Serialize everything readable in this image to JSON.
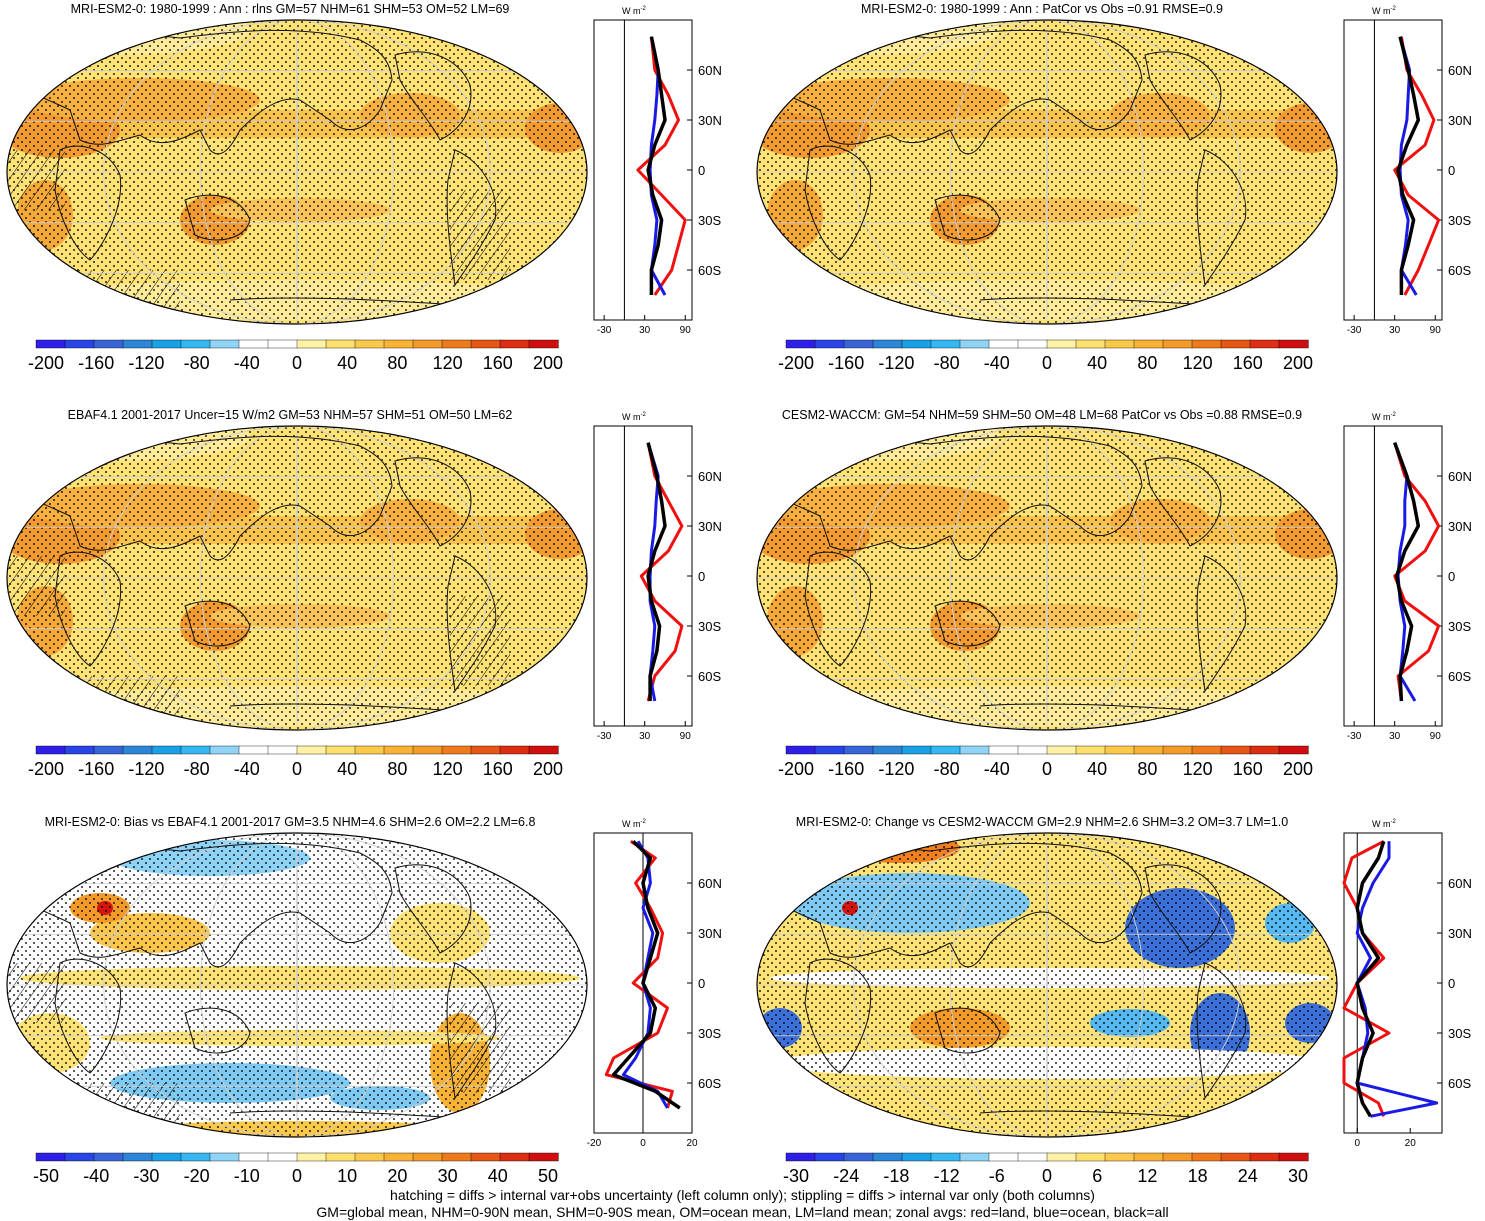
{
  "panels": [
    {
      "title": "MRI-ESM2-0: 1980-1999 : Ann : rlns GM=57 NHM=61 SHM=53 OM=52 LM=69",
      "kind": "climatology",
      "hatching": true,
      "colorbar": [
        "-200",
        "-160",
        "-120",
        "-80",
        "-40",
        "0",
        "40",
        "80",
        "120",
        "160",
        "200"
      ],
      "zonal": {
        "unit": "W m",
        "unit_sup": "-2",
        "xticks": [
          "-30",
          "30",
          "90"
        ],
        "xmin": -45,
        "xmax": 100,
        "zero_line": 0,
        "lat_labels": [
          "60N",
          "30N",
          "0",
          "30S",
          "60S"
        ]
      }
    },
    {
      "title": "MRI-ESM2-0: 1980-1999 : Ann : PatCor vs Obs =0.91 RMSE=0.9",
      "kind": "climatology",
      "hatching": false,
      "colorbar": [
        "-200",
        "-160",
        "-120",
        "-80",
        "-40",
        "0",
        "40",
        "80",
        "120",
        "160",
        "200"
      ],
      "zonal": {
        "unit": "W m",
        "unit_sup": "-2",
        "xticks": [
          "-30",
          "30",
          "90"
        ],
        "xmin": -45,
        "xmax": 100,
        "zero_line": 0,
        "lat_labels": [
          "60N",
          "30N",
          "0",
          "30S",
          "60S"
        ]
      }
    },
    {
      "title": "EBAF4.1 2001-2017 Uncer=15 W/m2 GM=53 NHM=57 SHM=51 OM=50 LM=62",
      "kind": "climatology",
      "hatching": true,
      "colorbar": [
        "-200",
        "-160",
        "-120",
        "-80",
        "-40",
        "0",
        "40",
        "80",
        "120",
        "160",
        "200"
      ],
      "zonal": {
        "unit": "W m",
        "unit_sup": "-2",
        "xticks": [
          "-30",
          "30",
          "90"
        ],
        "xmin": -45,
        "xmax": 100,
        "zero_line": 0,
        "lat_labels": [
          "60N",
          "30N",
          "0",
          "30S",
          "60S"
        ]
      }
    },
    {
      "title": "CESM2-WACCM: GM=54 NHM=59 SHM=50 OM=48 LM=68 PatCor vs Obs =0.88 RMSE=0.9",
      "kind": "climatology",
      "hatching": false,
      "colorbar": [
        "-200",
        "-160",
        "-120",
        "-80",
        "-40",
        "0",
        "40",
        "80",
        "120",
        "160",
        "200"
      ],
      "zonal": {
        "unit": "W m",
        "unit_sup": "-2",
        "xticks": [
          "-30",
          "30",
          "90"
        ],
        "xmin": -45,
        "xmax": 100,
        "zero_line": 0,
        "lat_labels": [
          "60N",
          "30N",
          "0",
          "30S",
          "60S"
        ]
      }
    },
    {
      "title": "MRI-ESM2-0: Bias vs EBAF4.1 2001-2017 GM=3.5 NHM=4.6 SHM=2.6 OM=2.2 LM=6.8",
      "kind": "bias",
      "hatching": true,
      "colorbar": [
        "-50",
        "-40",
        "-30",
        "-20",
        "-10",
        "0",
        "10",
        "20",
        "30",
        "40",
        "50"
      ],
      "zonal": {
        "unit": "W m",
        "unit_sup": "-2",
        "xticks": [
          "-20",
          "0",
          "20"
        ],
        "xmin": -20,
        "xmax": 20,
        "zero_line": 0,
        "lat_labels": [
          "60N",
          "30N",
          "0",
          "30S",
          "60S"
        ]
      }
    },
    {
      "title": "MRI-ESM2-0: Change vs CESM2-WACCM GM=2.9 NHM=2.6 SHM=3.2 OM=3.7 LM=1.0",
      "kind": "change",
      "hatching": false,
      "colorbar": [
        "-30",
        "-24",
        "-18",
        "-12",
        "-6",
        "0",
        "6",
        "12",
        "18",
        "24",
        "30"
      ],
      "zonal": {
        "unit": "W m",
        "unit_sup": "-2",
        "xticks": [
          "0",
          "20"
        ],
        "xmin": -5,
        "xmax": 32,
        "zero_line": 0,
        "lat_labels": [
          "60N",
          "30N",
          "0",
          "30S",
          "60S"
        ]
      }
    }
  ],
  "footer": {
    "line1": "hatching = diffs > internal var+obs uncertainty (left column only); stippling = diffs > internal var only (both columns)",
    "line2": "GM=global mean, NHM=0-90N mean, SHM=0-90S mean, OM=ocean mean, LM=land mean; zonal avgs: red=land, blue=ocean, black=all"
  },
  "chart_data": [
    {
      "type": "heatmap",
      "title": "MRI-ESM2-0: 1980-1999 : Ann : rlns GM=57 NHM=61 SHM=53 OM=52 LM=69",
      "colorbar_ticks": [
        -200,
        -160,
        -120,
        -80,
        -40,
        0,
        40,
        80,
        120,
        160,
        200
      ],
      "zonal_mean": {
        "xlim": [
          -45,
          100
        ],
        "xticks": [
          -30,
          30,
          90
        ],
        "lat": [
          80,
          60,
          45,
          30,
          15,
          0,
          -15,
          -30,
          -45,
          -60,
          -75
        ],
        "series": [
          {
            "name": "red=land",
            "values": [
              40,
              45,
              65,
              80,
              60,
              20,
              55,
              90,
              80,
              70,
              45
            ]
          },
          {
            "name": "blue=ocean",
            "values": [
              40,
              50,
              48,
              45,
              40,
              38,
              40,
              48,
              45,
              40,
              60
            ]
          },
          {
            "name": "black=all",
            "values": [
              40,
              50,
              55,
              60,
              45,
              35,
              42,
              55,
              50,
              40,
              40
            ]
          }
        ]
      }
    },
    {
      "type": "heatmap",
      "title": "MRI-ESM2-0: 1980-1999 : Ann : PatCor vs Obs =0.91 RMSE=0.9",
      "colorbar_ticks": [
        -200,
        -160,
        -120,
        -80,
        -40,
        0,
        40,
        80,
        120,
        160,
        200
      ],
      "zonal_mean": {
        "xlim": [
          -45,
          100
        ],
        "xticks": [
          -30,
          30,
          90
        ],
        "lat": [
          80,
          60,
          45,
          30,
          15,
          0,
          -15,
          -30,
          -45,
          -60,
          -75
        ],
        "series": [
          {
            "name": "red=land",
            "values": [
              40,
              48,
              70,
              88,
              75,
              30,
              50,
              95,
              80,
              65,
              45
            ]
          },
          {
            "name": "blue=ocean",
            "values": [
              38,
              52,
              50,
              48,
              40,
              38,
              40,
              50,
              46,
              40,
              62
            ]
          },
          {
            "name": "black=all",
            "values": [
              38,
              50,
              58,
              65,
              48,
              35,
              42,
              58,
              50,
              40,
              40
            ]
          }
        ]
      }
    },
    {
      "type": "heatmap",
      "title": "EBAF4.1 2001-2017 Uncer=15 W/m2 GM=53 NHM=57 SHM=51 OM=50 LM=62",
      "colorbar_ticks": [
        -200,
        -160,
        -120,
        -80,
        -40,
        0,
        40,
        80,
        120,
        160,
        200
      ],
      "zonal_mean": {
        "xlim": [
          -45,
          100
        ],
        "xticks": [
          -30,
          30,
          90
        ],
        "lat": [
          80,
          60,
          45,
          30,
          15,
          0,
          -15,
          -30,
          -45,
          -60,
          -75
        ],
        "series": [
          {
            "name": "red=land",
            "values": [
              35,
              45,
              65,
              85,
              65,
              25,
              45,
              85,
              75,
              45,
              35
            ]
          },
          {
            "name": "blue=ocean",
            "values": [
              35,
              50,
              47,
              45,
              40,
              38,
              38,
              45,
              42,
              38,
              45
            ]
          },
          {
            "name": "black=all",
            "values": [
              35,
              48,
              55,
              60,
              45,
              35,
              40,
              52,
              48,
              38,
              38
            ]
          }
        ]
      }
    },
    {
      "type": "heatmap",
      "title": "CESM2-WACCM: GM=54 NHM=59 SHM=50 OM=48 LM=68 PatCor vs Obs =0.88 RMSE=0.9",
      "colorbar_ticks": [
        -200,
        -160,
        -120,
        -80,
        -40,
        0,
        40,
        80,
        120,
        160,
        200
      ],
      "zonal_mean": {
        "xlim": [
          -45,
          100
        ],
        "xticks": [
          -30,
          30,
          90
        ],
        "lat": [
          80,
          60,
          45,
          30,
          15,
          0,
          -15,
          -30,
          -45,
          -60,
          -75
        ],
        "series": [
          {
            "name": "red=land",
            "values": [
              30,
              45,
              75,
              95,
              75,
              30,
              45,
              95,
              80,
              35,
              40
            ]
          },
          {
            "name": "blue=ocean",
            "values": [
              30,
              48,
              45,
              45,
              38,
              35,
              38,
              45,
              42,
              38,
              60
            ]
          },
          {
            "name": "black=all",
            "values": [
              30,
              48,
              58,
              65,
              45,
              33,
              40,
              55,
              48,
              38,
              40
            ]
          }
        ]
      }
    },
    {
      "type": "heatmap",
      "title": "MRI-ESM2-0: Bias vs EBAF4.1 2001-2017 GM=3.5 NHM=4.6 SHM=2.6 OM=2.2 LM=6.8",
      "colorbar_ticks": [
        -50,
        -40,
        -30,
        -20,
        -10,
        0,
        10,
        20,
        30,
        40,
        50
      ],
      "zonal_mean": {
        "xlim": [
          -20,
          20
        ],
        "xticks": [
          -20,
          0,
          20
        ],
        "lat": [
          85,
          75,
          60,
          45,
          30,
          15,
          0,
          -15,
          -30,
          -45,
          -55,
          -65,
          -75
        ],
        "series": [
          {
            "name": "red=land",
            "values": [
              -5,
              5,
              -3,
              3,
              8,
              6,
              -4,
              10,
              6,
              -12,
              -15,
              12,
              10
            ]
          },
          {
            "name": "blue=ocean",
            "values": [
              -2,
              2,
              3,
              0,
              4,
              2,
              0,
              3,
              2,
              -3,
              -8,
              6,
              10
            ]
          },
          {
            "name": "black=all",
            "values": [
              -4,
              3,
              0,
              2,
              6,
              3,
              0,
              5,
              3,
              -6,
              -12,
              5,
              15
            ]
          }
        ]
      }
    },
    {
      "type": "heatmap",
      "title": "MRI-ESM2-0: Change vs CESM2-WACCM GM=2.9 NHM=2.6 SHM=3.2 OM=3.7 LM=1.0",
      "colorbar_ticks": [
        -30,
        -24,
        -18,
        -12,
        -6,
        0,
        6,
        12,
        18,
        24,
        30
      ],
      "zonal_mean": {
        "xlim": [
          -5,
          32
        ],
        "xticks": [
          0,
          20
        ],
        "lat": [
          85,
          75,
          60,
          45,
          30,
          15,
          0,
          -15,
          -30,
          -45,
          -60,
          -72,
          -80
        ],
        "series": [
          {
            "name": "red=land",
            "values": [
              10,
              -2,
              -5,
              0,
              2,
              10,
              0,
              -5,
              12,
              -5,
              -5,
              8,
              10
            ]
          },
          {
            "name": "blue=ocean",
            "values": [
              12,
              12,
              6,
              2,
              0,
              5,
              0,
              3,
              4,
              2,
              0,
              30,
              5
            ]
          },
          {
            "name": "black=all",
            "values": [
              10,
              8,
              2,
              0,
              2,
              8,
              0,
              2,
              6,
              2,
              0,
              2,
              5
            ]
          }
        ]
      }
    }
  ]
}
